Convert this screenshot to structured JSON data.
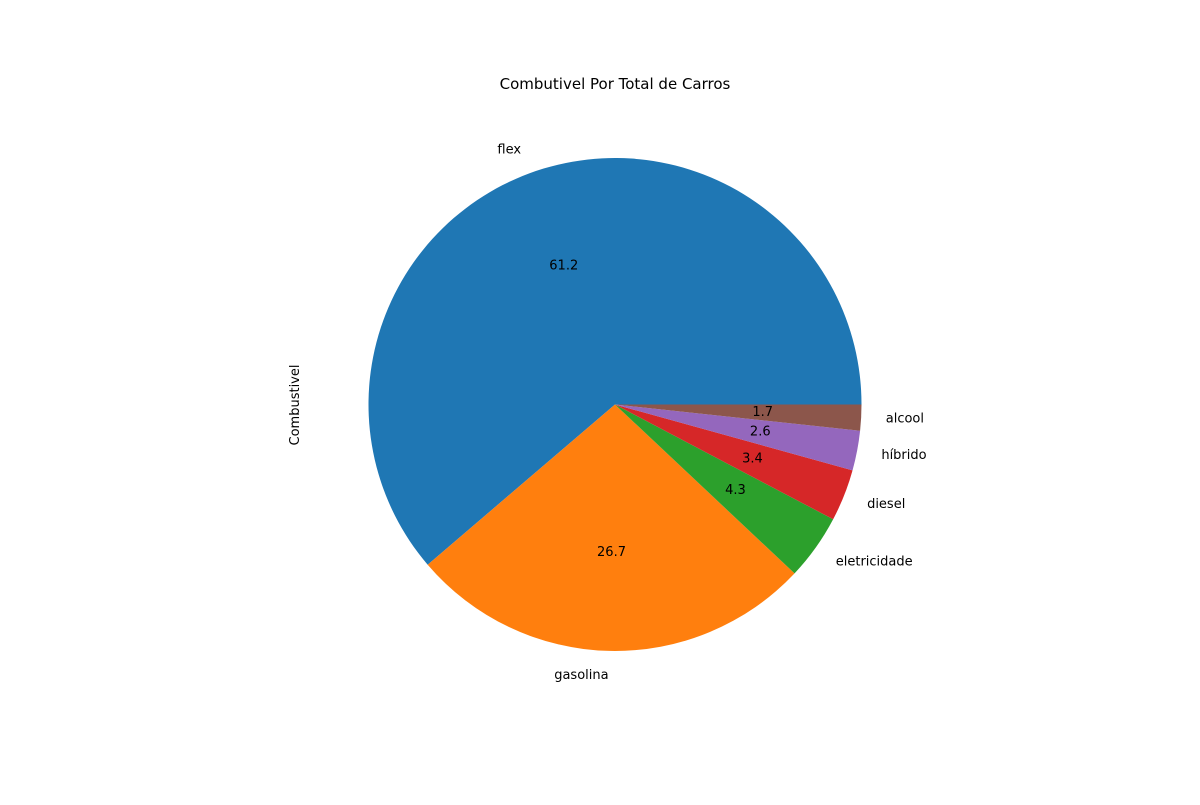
{
  "chart_data": {
    "type": "pie",
    "title": "Combutivel Por Total de Carros",
    "ylabel": "Combustivel",
    "slices": [
      {
        "label": "flex",
        "value": 61.2,
        "value_label": "61.2",
        "color": "#1f77b4"
      },
      {
        "label": "gasolina",
        "value": 26.7,
        "value_label": "26.7",
        "color": "#ff7f0e"
      },
      {
        "label": "eletricidade",
        "value": 4.3,
        "value_label": "4.3",
        "color": "#2ca02c"
      },
      {
        "label": "diesel",
        "value": 3.4,
        "value_label": "3.4",
        "color": "#d62728"
      },
      {
        "label": "híbrido",
        "value": 2.6,
        "value_label": "2.6",
        "color": "#9467bd"
      },
      {
        "label": "alcool",
        "value": 1.7,
        "value_label": "1.7",
        "color": "#8c564b"
      }
    ],
    "start_angle": "3 o'clock",
    "direction": "counterclockwise",
    "legend": "none"
  }
}
